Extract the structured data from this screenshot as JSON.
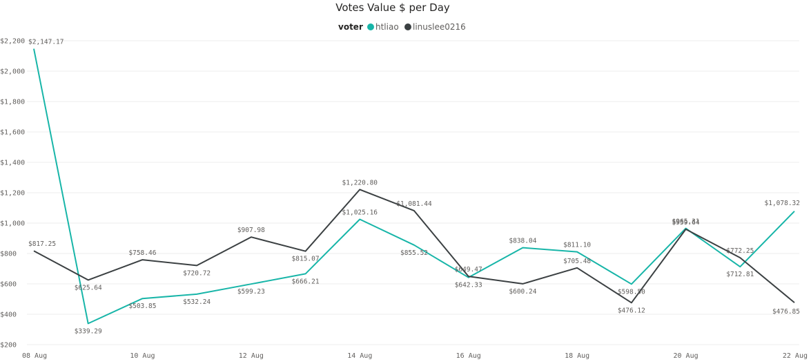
{
  "chart_data": {
    "type": "line",
    "title": "Votes Value $ per Day",
    "legend": {
      "title": "voter",
      "placement": "top-center"
    },
    "x": [
      "08 Aug",
      "09 Aug",
      "10 Aug",
      "11 Aug",
      "12 Aug",
      "13 Aug",
      "14 Aug",
      "15 Aug",
      "16 Aug",
      "17 Aug",
      "18 Aug",
      "19 Aug",
      "20 Aug",
      "21 Aug",
      "22 Aug"
    ],
    "x_tick_labels": [
      "08 Aug",
      "10 Aug",
      "12 Aug",
      "14 Aug",
      "16 Aug",
      "18 Aug",
      "20 Aug",
      "22 Aug"
    ],
    "y_tick_labels": [
      "$200",
      "$400",
      "$600",
      "$800",
      "$1,000",
      "$1,200",
      "$1,400",
      "$1,600",
      "$1,800",
      "$2,000",
      "$2,200"
    ],
    "ylim": [
      200,
      2200
    ],
    "grid": true,
    "series": [
      {
        "name": "htliao",
        "color": "#17b5a8",
        "values": [
          2147.17,
          339.29,
          503.85,
          532.24,
          599.23,
          666.21,
          1025.16,
          855.52,
          642.33,
          838.04,
          811.1,
          598.5,
          965.31,
          712.81,
          1078.32
        ],
        "labels": [
          "$2,147.17",
          "$339.29",
          "$503.85",
          "$532.24",
          "$599.23",
          "$666.21",
          "$1,025.16",
          "$855.52",
          "$642.33",
          "$838.04",
          "$811.10",
          "$598.50",
          "$965.31",
          "$712.81",
          "$1,078.32"
        ]
      },
      {
        "name": "linuslee0216",
        "color": "#3b4042",
        "values": [
          817.25,
          625.64,
          758.46,
          720.72,
          907.98,
          815.07,
          1220.8,
          1081.44,
          649.47,
          600.24,
          705.48,
          476.12,
          959.64,
          772.25,
          476.85
        ],
        "labels": [
          "$817.25",
          "$625.64",
          "$758.46",
          "$720.72",
          "$907.98",
          "$815.07",
          "$1,220.80",
          "$1,081.44",
          "$649.47",
          "$600.24",
          "$705.48",
          "$476.12",
          "$959.64",
          "$772.25",
          "$476.85"
        ]
      }
    ]
  }
}
